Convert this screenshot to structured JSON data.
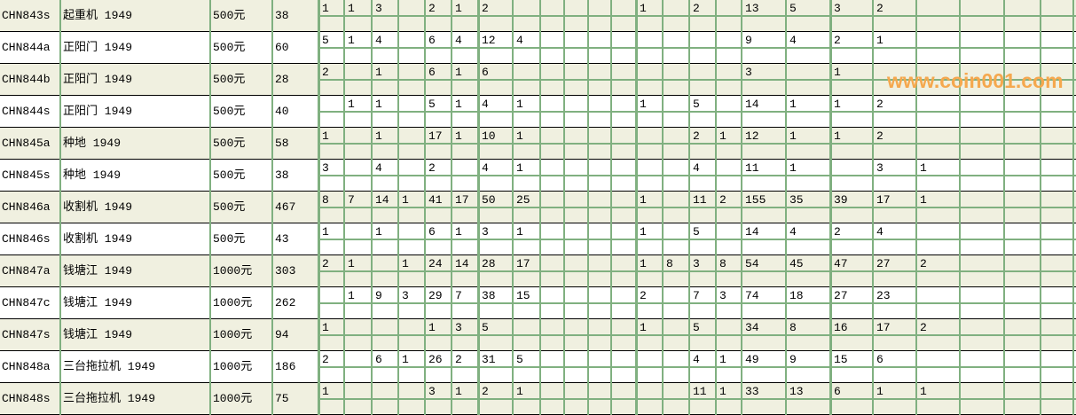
{
  "colors": {
    "row_alt": "#f0f0e0",
    "grid_line": "#80b080",
    "watermark": "#f5a84e"
  },
  "watermark": "www.coin001.com",
  "rows": [
    {
      "code": "CHN843s",
      "name": "起重机 1949",
      "price": "500元",
      "count": "38",
      "cells": [
        "1",
        "1",
        "3",
        "",
        "2",
        "1",
        "2",
        "",
        "",
        "",
        "",
        "",
        "1",
        "",
        "2",
        "",
        "13",
        "5",
        "3",
        "2",
        "",
        "",
        "",
        ""
      ]
    },
    {
      "code": "CHN844a",
      "name": "正阳门 1949",
      "price": "500元",
      "count": "60",
      "cells": [
        "5",
        "1",
        "4",
        "",
        "6",
        "4",
        "12",
        "4",
        "",
        "",
        "",
        "",
        "",
        "",
        "",
        "",
        "9",
        "4",
        "2",
        "1",
        "",
        "",
        "",
        ""
      ]
    },
    {
      "code": "CHN844b",
      "name": "正阳门 1949",
      "price": "500元",
      "count": "28",
      "cells": [
        "2",
        "",
        "1",
        "",
        "6",
        "1",
        "6",
        "",
        "",
        "",
        "",
        "",
        "",
        "",
        "",
        "",
        "3",
        "",
        "1",
        "",
        "",
        "",
        "",
        ""
      ]
    },
    {
      "code": "CHN844s",
      "name": "正阳门 1949",
      "price": "500元",
      "count": "40",
      "cells": [
        "",
        "1",
        "1",
        "",
        "5",
        "1",
        "4",
        "1",
        "",
        "",
        "",
        "",
        "1",
        "",
        "5",
        "",
        "14",
        "1",
        "1",
        "2",
        "",
        "",
        "",
        ""
      ]
    },
    {
      "code": "CHN845a",
      "name": "种地 1949",
      "price": "500元",
      "count": "58",
      "cells": [
        "1",
        "",
        "1",
        "",
        "17",
        "1",
        "10",
        "1",
        "",
        "",
        "",
        "",
        "",
        "",
        "2",
        "1",
        "12",
        "1",
        "1",
        "2",
        "",
        "",
        "",
        ""
      ]
    },
    {
      "code": "CHN845s",
      "name": "种地 1949",
      "price": "500元",
      "count": "38",
      "cells": [
        "3",
        "",
        "4",
        "",
        "2",
        "",
        "4",
        "1",
        "",
        "",
        "",
        "",
        "",
        "",
        "4",
        "",
        "11",
        "1",
        "",
        "3",
        "1",
        "",
        "",
        ""
      ]
    },
    {
      "code": "CHN846a",
      "name": "收割机 1949",
      "price": "500元",
      "count": "467",
      "cells": [
        "8",
        "7",
        "14",
        "1",
        "41",
        "17",
        "50",
        "25",
        "",
        "",
        "",
        "",
        "1",
        "",
        "11",
        "2",
        "155",
        "35",
        "39",
        "17",
        "1",
        "",
        "",
        ""
      ]
    },
    {
      "code": "CHN846s",
      "name": "收割机 1949",
      "price": "500元",
      "count": "43",
      "cells": [
        "1",
        "",
        "1",
        "",
        "6",
        "1",
        "3",
        "1",
        "",
        "",
        "",
        "",
        "1",
        "",
        "5",
        "",
        "14",
        "4",
        "2",
        "4",
        "",
        "",
        "",
        ""
      ]
    },
    {
      "code": "CHN847a",
      "name": "钱塘江 1949",
      "price": "1000元",
      "count": "303",
      "cells": [
        "2",
        "1",
        "",
        "1",
        "24",
        "14",
        "28",
        "17",
        "",
        "",
        "",
        "",
        "1",
        "8",
        "3",
        "8",
        "54",
        "45",
        "47",
        "27",
        "2",
        "",
        "",
        ""
      ]
    },
    {
      "code": "CHN847c",
      "name": "钱塘江 1949",
      "price": "1000元",
      "count": "262",
      "cells": [
        "",
        "1",
        "9",
        "3",
        "29",
        "7",
        "38",
        "15",
        "",
        "",
        "",
        "",
        "2",
        "",
        "7",
        "3",
        "74",
        "18",
        "27",
        "23",
        "",
        "",
        "",
        ""
      ]
    },
    {
      "code": "CHN847s",
      "name": "钱塘江 1949",
      "price": "1000元",
      "count": "94",
      "cells": [
        "1",
        "",
        "",
        "",
        "1",
        "3",
        "5",
        "",
        "",
        "",
        "",
        "",
        "1",
        "",
        "5",
        "",
        "34",
        "8",
        "16",
        "17",
        "2",
        "",
        "",
        ""
      ]
    },
    {
      "code": "CHN848a",
      "name": "三台拖拉机 1949",
      "price": "1000元",
      "count": "186",
      "cells": [
        "2",
        "",
        "6",
        "1",
        "26",
        "2",
        "31",
        "5",
        "",
        "",
        "",
        "",
        "",
        "",
        "4",
        "1",
        "49",
        "9",
        "15",
        "6",
        "",
        "",
        "",
        ""
      ]
    },
    {
      "code": "CHN848s",
      "name": "三台拖拉机 1949",
      "price": "1000元",
      "count": "75",
      "cells": [
        "1",
        "",
        "",
        "",
        "3",
        "1",
        "2",
        "1",
        "",
        "",
        "",
        "",
        "",
        "",
        "11",
        "1",
        "33",
        "13",
        "6",
        "1",
        "1",
        "",
        "",
        ""
      ]
    }
  ]
}
